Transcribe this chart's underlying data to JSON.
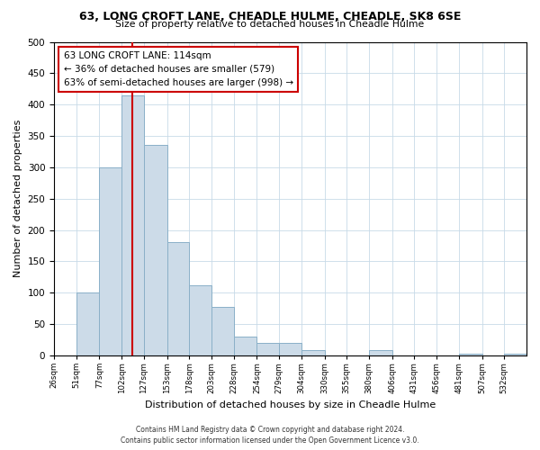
{
  "title": "63, LONG CROFT LANE, CHEADLE HULME, CHEADLE, SK8 6SE",
  "subtitle": "Size of property relative to detached houses in Cheadle Hulme",
  "xlabel": "Distribution of detached houses by size in Cheadle Hulme",
  "ylabel": "Number of detached properties",
  "bin_labels": [
    "26sqm",
    "51sqm",
    "77sqm",
    "102sqm",
    "127sqm",
    "153sqm",
    "178sqm",
    "203sqm",
    "228sqm",
    "254sqm",
    "279sqm",
    "304sqm",
    "330sqm",
    "355sqm",
    "380sqm",
    "406sqm",
    "431sqm",
    "456sqm",
    "481sqm",
    "507sqm",
    "532sqm"
  ],
  "bin_left_edges": [
    26,
    51,
    77,
    102,
    127,
    153,
    178,
    203,
    228,
    254,
    279,
    304,
    330,
    355,
    380,
    406,
    431,
    456,
    481,
    507,
    532
  ],
  "bin_widths": [
    25,
    26,
    25,
    25,
    26,
    25,
    25,
    25,
    26,
    25,
    25,
    26,
    25,
    25,
    26,
    25,
    25,
    25,
    26,
    25,
    25
  ],
  "bar_heights": [
    0,
    100,
    300,
    415,
    335,
    180,
    112,
    77,
    30,
    20,
    20,
    8,
    0,
    0,
    8,
    0,
    0,
    0,
    2,
    0,
    2
  ],
  "bar_color": "#ccdbe8",
  "bar_edge_color": "#8ab0c8",
  "vline_x": 114,
  "vline_color": "#cc0000",
  "annotation_line1": "63 LONG CROFT LANE: 114sqm",
  "annotation_line2": "← 36% of detached houses are smaller (579)",
  "annotation_line3": "63% of semi-detached houses are larger (998) →",
  "annotation_box_facecolor": "white",
  "annotation_box_edgecolor": "#cc0000",
  "ylim": [
    0,
    500
  ],
  "yticks": [
    0,
    50,
    100,
    150,
    200,
    250,
    300,
    350,
    400,
    450,
    500
  ],
  "xmin": 26,
  "xmax": 557,
  "footer_line1": "Contains HM Land Registry data © Crown copyright and database right 2024.",
  "footer_line2": "Contains public sector information licensed under the Open Government Licence v3.0.",
  "bg_color": "#ffffff",
  "plot_bg_color": "#ffffff",
  "grid_color": "#c8dae8"
}
